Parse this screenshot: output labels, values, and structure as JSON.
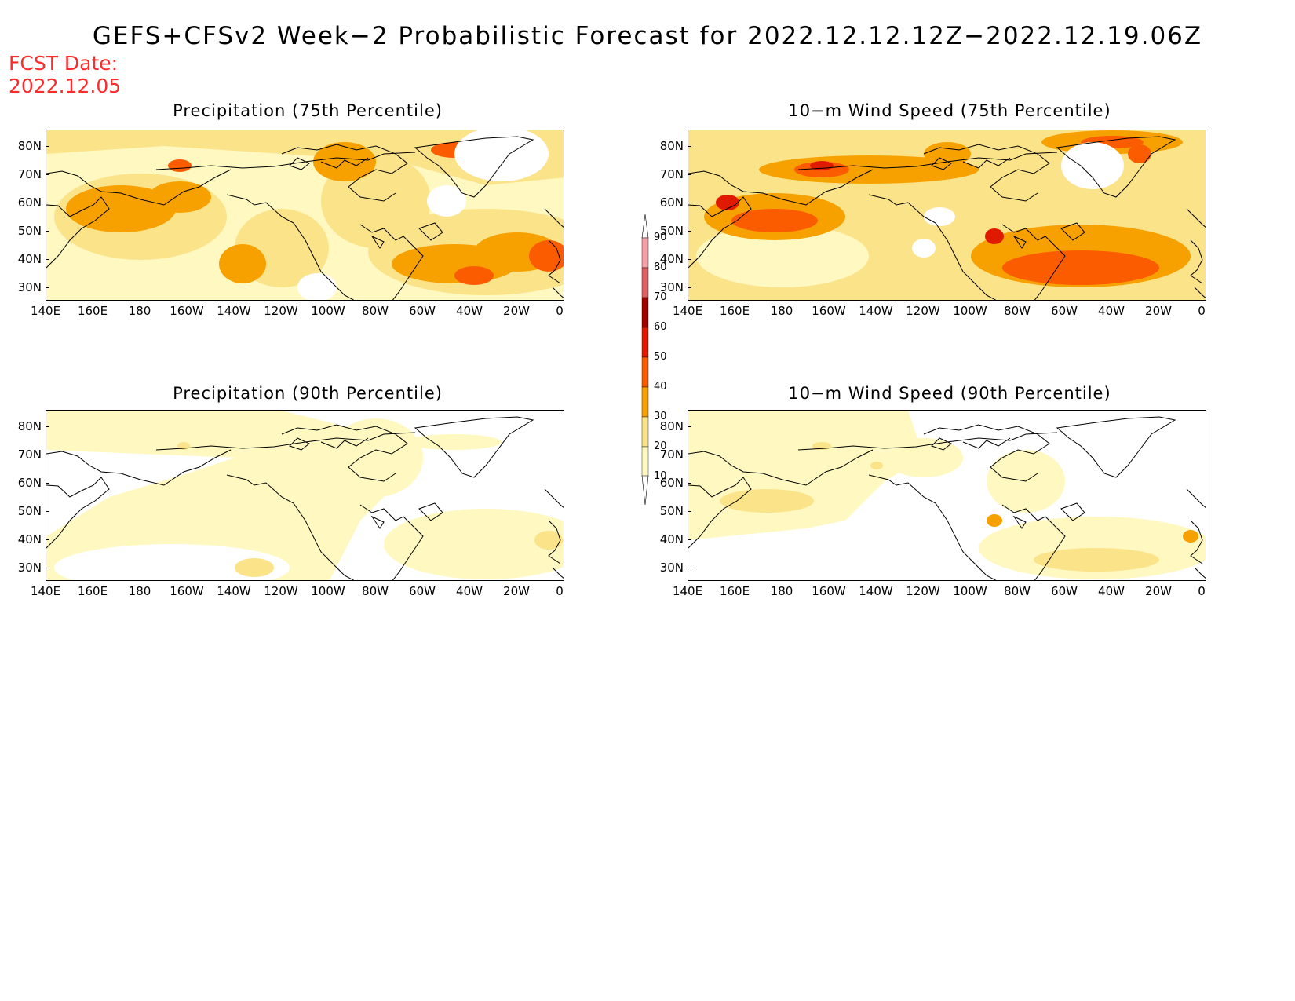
{
  "title": "GEFS+CFSv2 Week−2 Probabilistic Forecast for 2022.12.12.12Z−2022.12.19.06Z",
  "fcst_date_label": "FCST Date:",
  "fcst_date_value": "2022.12.05",
  "panels": [
    {
      "title": "Precipitation (75th Percentile)"
    },
    {
      "title": "10−m Wind Speed (75th Percentile)"
    },
    {
      "title": "Precipitation (90th Percentile)"
    },
    {
      "title": "10−m Wind Speed (90th Percentile)"
    }
  ],
  "lat_labels": [
    "80N",
    "70N",
    "60N",
    "50N",
    "40N",
    "30N"
  ],
  "lon_labels": [
    "140E",
    "160E",
    "180",
    "160W",
    "140W",
    "120W",
    "100W",
    "80W",
    "60W",
    "40W",
    "20W",
    "0"
  ],
  "colorbar": {
    "labels": [
      "90",
      "80",
      "70",
      "60",
      "50",
      "40",
      "30",
      "20",
      "10"
    ],
    "colors": [
      "#fdfdfd",
      "#f5a0a8",
      "#e06063",
      "#a00000",
      "#e01a00",
      "#fb5c00",
      "#f7a100",
      "#fbe38a",
      "#fff8c0"
    ]
  },
  "colors": {
    "c10": "#fff8c0",
    "c20": "#fbe38a",
    "c30": "#f7a100",
    "c40": "#fb5c00",
    "c50": "#e01a00",
    "red": "#ff2a2a"
  }
}
